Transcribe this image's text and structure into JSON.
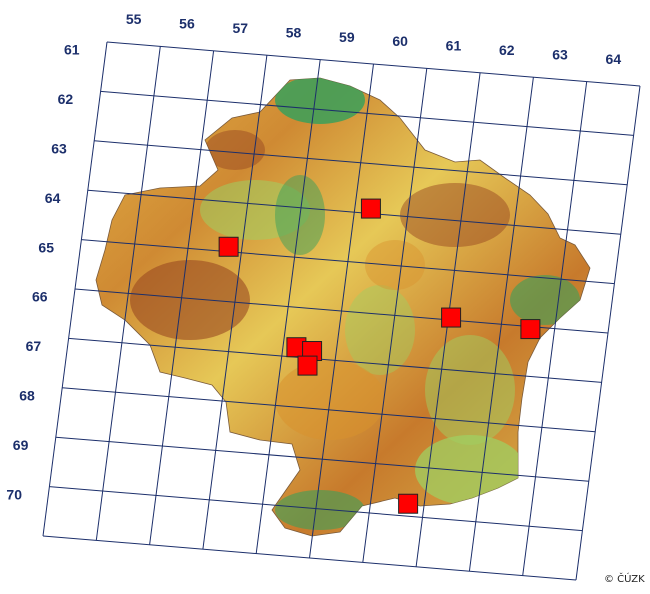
{
  "map": {
    "column_labels": [
      "55",
      "56",
      "57",
      "58",
      "59",
      "60",
      "61",
      "62",
      "63",
      "64"
    ],
    "row_labels": [
      "61",
      "62",
      "63",
      "64",
      "65",
      "66",
      "67",
      "68",
      "69",
      "70"
    ],
    "credit": "© ČÚZK",
    "marker_color": "#ff0000",
    "grid_color": "#1c2f6b",
    "relief_colors": {
      "low": "#3aa05a",
      "mid_low": "#9fcf62",
      "mid": "#e8d35a",
      "mid_high": "#d9922e",
      "high": "#9a4a22"
    },
    "occurrence_squares": [
      {
        "column": "57",
        "row": "64"
      },
      {
        "column": "60",
        "row": "63"
      },
      {
        "column": "59",
        "row": "66"
      },
      {
        "column": "59",
        "row": "66"
      },
      {
        "column": "59",
        "row": "66"
      },
      {
        "column": "62",
        "row": "65"
      },
      {
        "column": "63",
        "row": "65"
      },
      {
        "column": "61",
        "row": "69"
      }
    ]
  }
}
